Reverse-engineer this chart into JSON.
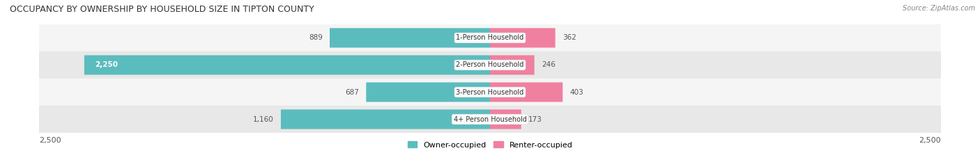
{
  "title": "OCCUPANCY BY OWNERSHIP BY HOUSEHOLD SIZE IN TIPTON COUNTY",
  "source": "Source: ZipAtlas.com",
  "categories": [
    "1-Person Household",
    "2-Person Household",
    "3-Person Household",
    "4+ Person Household"
  ],
  "owner_values": [
    889,
    2250,
    687,
    1160
  ],
  "renter_values": [
    362,
    246,
    403,
    173
  ],
  "max_scale": 2500,
  "owner_color": "#5bbcbe",
  "renter_color": "#f080a0",
  "row_bg_light": "#f5f5f5",
  "row_bg_dark": "#e8e8e8",
  "label_color": "#555555",
  "title_color": "#333333",
  "legend_owner": "Owner-occupied",
  "legend_renter": "Renter-occupied",
  "figsize": [
    14.06,
    2.33
  ],
  "dpi": 100
}
